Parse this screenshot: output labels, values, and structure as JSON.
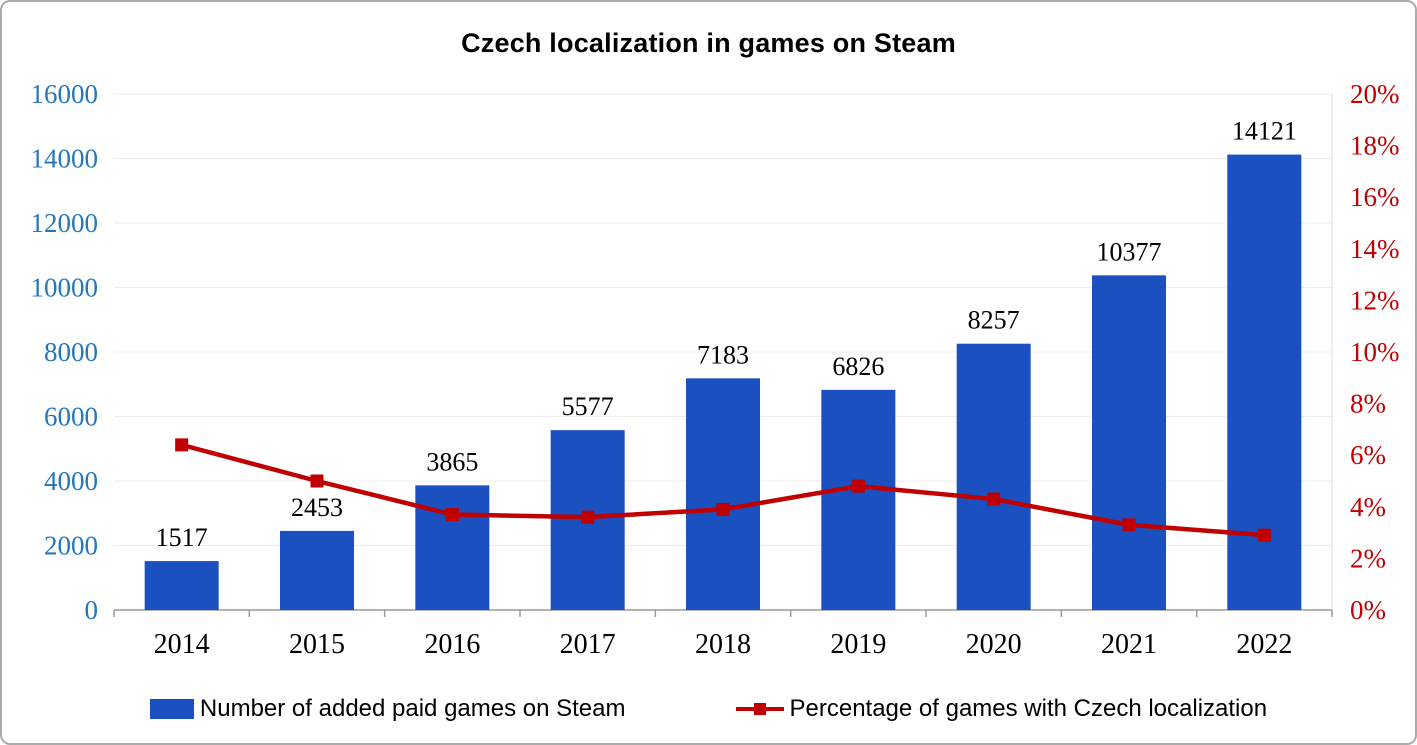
{
  "title": "Czech localization in games on Steam",
  "legend": {
    "bars_label": "Number of added paid games on Steam",
    "line_label": "Percentage of games with Czech localization"
  },
  "colors": {
    "bar": "#1b50c0",
    "line": "#c00000",
    "left_axis_text": "#2277bd",
    "right_axis_text": "#c00000",
    "axis_line": "#9a9a9a",
    "gridline": "#ededed",
    "data_label": "#000000"
  },
  "chart_data": {
    "type": "bar",
    "subtype": "combo bar + line, dual axis",
    "title": "Czech localization in games on Steam",
    "categories": [
      "2014",
      "2015",
      "2016",
      "2017",
      "2018",
      "2019",
      "2020",
      "2021",
      "2022"
    ],
    "series": [
      {
        "name": "Number of added paid games on Steam",
        "type": "bar",
        "axis": "left",
        "values": [
          1517,
          2453,
          3865,
          5577,
          7183,
          6826,
          8257,
          10377,
          14121
        ]
      },
      {
        "name": "Percentage of games with Czech localization",
        "type": "line",
        "axis": "right",
        "unit": "%",
        "values": [
          6.4,
          5.0,
          3.7,
          3.6,
          3.9,
          4.8,
          4.3,
          3.3,
          2.9
        ]
      }
    ],
    "left_axis": {
      "min": 0,
      "max": 16000,
      "step": 2000,
      "tick_labels": [
        "0",
        "2000",
        "4000",
        "6000",
        "8000",
        "10000",
        "12000",
        "14000",
        "16000"
      ]
    },
    "right_axis": {
      "min": 0,
      "max": 20,
      "step": 2,
      "tick_labels": [
        "0%",
        "2%",
        "4%",
        "6%",
        "8%",
        "10%",
        "12%",
        "14%",
        "16%",
        "18%",
        "20%"
      ]
    },
    "grid": "light horizontal gridlines",
    "legend_position": "bottom",
    "data_labels": "above bars"
  }
}
